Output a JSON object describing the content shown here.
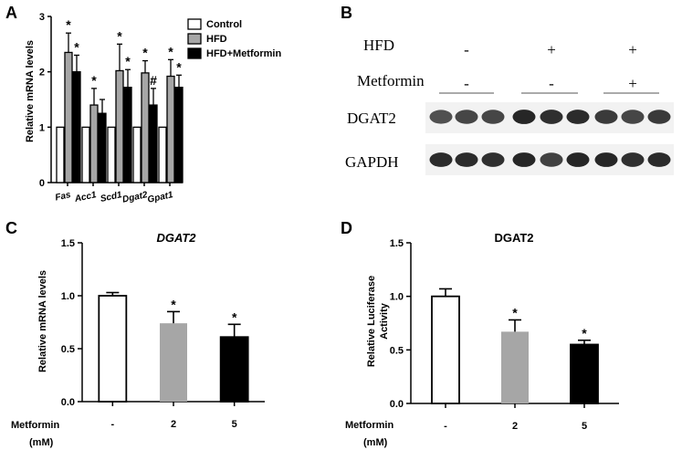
{
  "panels": {
    "A": "A",
    "B": "B",
    "C": "C",
    "D": "D"
  },
  "colors": {
    "control": "#ffffff",
    "hfd": "#a6a6a6",
    "metformin": "#000000",
    "blot_band": "#1a1a1a"
  },
  "chart_data": [
    {
      "panel": "A",
      "type": "bar",
      "ylabel": "Relative mRNA levels",
      "ylim": [
        0,
        3
      ],
      "yticks": [
        "0",
        "1",
        "2",
        "3"
      ],
      "categories": [
        "Fas",
        "Acc1",
        "Scd1",
        "Dgat2",
        "Gpat1"
      ],
      "legend_position": "top-right",
      "series": [
        {
          "name": "Control",
          "values": [
            1,
            1,
            1,
            1,
            1
          ],
          "errors": [
            0,
            0,
            0,
            0,
            0
          ],
          "marks": [
            "",
            "",
            "",
            "",
            ""
          ]
        },
        {
          "name": "HFD",
          "values": [
            2.35,
            1.4,
            2.02,
            1.98,
            1.92
          ],
          "errors": [
            0.35,
            0.3,
            0.48,
            0.22,
            0.3
          ],
          "marks": [
            "*",
            "*",
            "*",
            "*",
            "*"
          ]
        },
        {
          "name": "HFD+Metformin",
          "values": [
            2.0,
            1.25,
            1.72,
            1.4,
            1.72
          ],
          "errors": [
            0.3,
            0.25,
            0.32,
            0.3,
            0.22
          ],
          "marks": [
            "*",
            "",
            "*",
            "#",
            "*"
          ]
        }
      ]
    },
    {
      "panel": "C",
      "type": "bar",
      "title": "DGAT2",
      "ylabel": "Relative mRNA levels",
      "ylim": [
        0,
        1.5
      ],
      "yticks": [
        "0.0",
        "0.5",
        "1.0",
        "1.5"
      ],
      "xlabel": "Metformin",
      "xlabel_unit": "(mM)",
      "categories": [
        "-",
        "2",
        "5"
      ],
      "values": [
        1.0,
        0.74,
        0.61
      ],
      "errors": [
        0.03,
        0.11,
        0.12
      ],
      "marks": [
        "",
        "*",
        "*"
      ]
    },
    {
      "panel": "D",
      "type": "bar",
      "title": "DGAT2",
      "ylabel": "Relative Luciferase Activity",
      "ylabel_lines": [
        "Relative Luciferase",
        "Activity"
      ],
      "ylim": [
        0,
        1.5
      ],
      "yticks": [
        "0.0",
        "0.5",
        "1.0",
        "1.5"
      ],
      "xlabel": "Metformin",
      "xlabel_unit": "(mM)",
      "categories": [
        "-",
        "2",
        "5"
      ],
      "values": [
        1.0,
        0.67,
        0.55
      ],
      "errors": [
        0.07,
        0.11,
        0.04
      ],
      "marks": [
        "",
        "*",
        "*"
      ]
    }
  ],
  "blot": {
    "conditions": [
      {
        "label": "HFD",
        "values": [
          "-",
          "+",
          "+"
        ]
      },
      {
        "label": "Metformin",
        "values": [
          "-",
          "-",
          "+"
        ]
      }
    ],
    "rows": [
      {
        "label": "DGAT2",
        "intensities": [
          0.75,
          0.8,
          0.8,
          0.95,
          0.9,
          0.92,
          0.85,
          0.8,
          0.85
        ]
      },
      {
        "label": "GAPDH",
        "intensities": [
          0.92,
          0.92,
          0.9,
          0.95,
          0.82,
          0.95,
          0.95,
          0.9,
          0.92
        ]
      }
    ]
  }
}
